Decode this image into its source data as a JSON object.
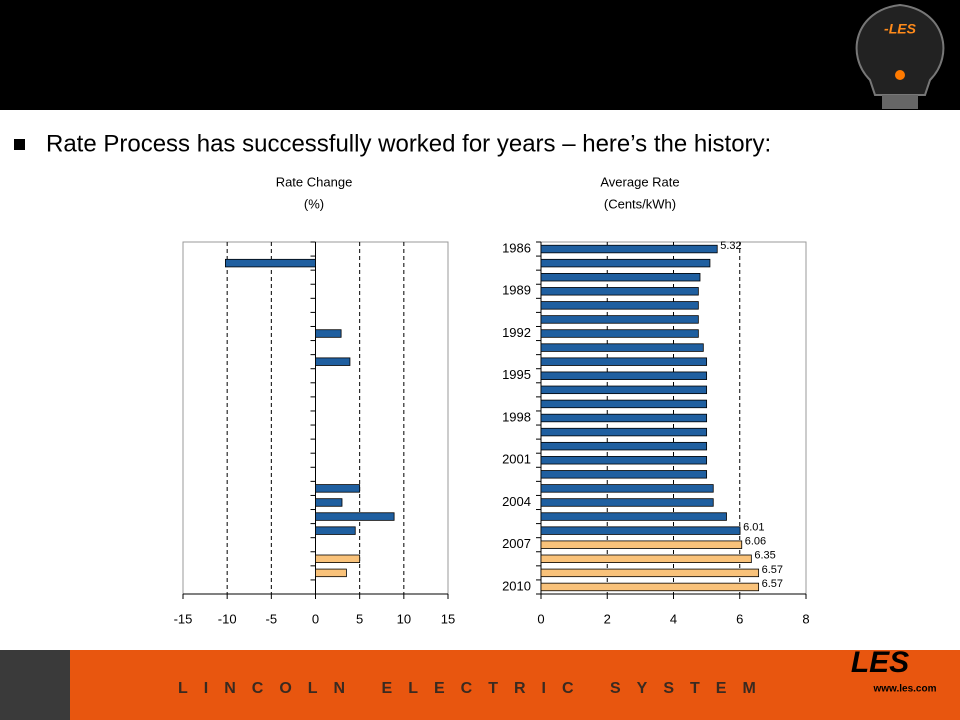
{
  "slide": {
    "bullet": "Rate Process has successfully worked for years – here’s the history:",
    "footer": "LINCOLN ELECTRIC SYSTEM",
    "logo": "LES",
    "url": "www.les.com"
  },
  "chart_data": [
    {
      "type": "hbar",
      "title": "Rate Change",
      "subtitle": "(%)",
      "values": [
        0,
        -10.2,
        0,
        0,
        0,
        0,
        2.9,
        0,
        3.9,
        0,
        0,
        0,
        0,
        0,
        0,
        0,
        0,
        5,
        3,
        8.9,
        4.5,
        0,
        5,
        3.5,
        0
      ],
      "colors": [
        "#1f5fa0",
        "#1f5fa0",
        "#1f5fa0",
        "#1f5fa0",
        "#1f5fa0",
        "#1f5fa0",
        "#1f5fa0",
        "#1f5fa0",
        "#1f5fa0",
        "#1f5fa0",
        "#1f5fa0",
        "#1f5fa0",
        "#1f5fa0",
        "#1f5fa0",
        "#1f5fa0",
        "#1f5fa0",
        "#1f5fa0",
        "#1f5fa0",
        "#1f5fa0",
        "#1f5fa0",
        "#1f5fa0",
        "#f9c27a",
        "#f9c27a",
        "#f9c27a",
        "#f9c27a"
      ],
      "xlim": [
        -15,
        15
      ],
      "xticks": [
        -15,
        -10,
        -5,
        0,
        5,
        10,
        15
      ],
      "grid": true
    },
    {
      "type": "hbar",
      "title": "Average Rate",
      "subtitle": "(Cents/kWh)",
      "categories": [
        "1986",
        null,
        null,
        "1989",
        null,
        null,
        "1992",
        null,
        null,
        "1995",
        null,
        null,
        "1998",
        null,
        null,
        "2001",
        null,
        null,
        "2004",
        null,
        null,
        "2007",
        null,
        null,
        "2010"
      ],
      "values": [
        5.32,
        5.1,
        4.8,
        4.75,
        4.75,
        4.75,
        4.75,
        4.9,
        5.0,
        5.0,
        5.0,
        5.0,
        5.0,
        5.0,
        5.0,
        5.0,
        5.0,
        5.2,
        5.2,
        5.6,
        6.01,
        6.06,
        6.35,
        6.57,
        6.57
      ],
      "value_labels": [
        "5.32",
        null,
        null,
        null,
        null,
        null,
        null,
        null,
        null,
        null,
        null,
        null,
        null,
        null,
        null,
        null,
        null,
        null,
        null,
        null,
        "6.01",
        "6.06",
        "6.35",
        "6.57",
        "6.57"
      ],
      "colors": [
        "#1f5fa0",
        "#1f5fa0",
        "#1f5fa0",
        "#1f5fa0",
        "#1f5fa0",
        "#1f5fa0",
        "#1f5fa0",
        "#1f5fa0",
        "#1f5fa0",
        "#1f5fa0",
        "#1f5fa0",
        "#1f5fa0",
        "#1f5fa0",
        "#1f5fa0",
        "#1f5fa0",
        "#1f5fa0",
        "#1f5fa0",
        "#1f5fa0",
        "#1f5fa0",
        "#1f5fa0",
        "#1f5fa0",
        "#f9c27a",
        "#f9c27a",
        "#f9c27a",
        "#f9c27a"
      ],
      "xlim": [
        0,
        8
      ],
      "xticks": [
        0,
        2,
        4,
        6,
        8
      ],
      "grid": true
    }
  ]
}
